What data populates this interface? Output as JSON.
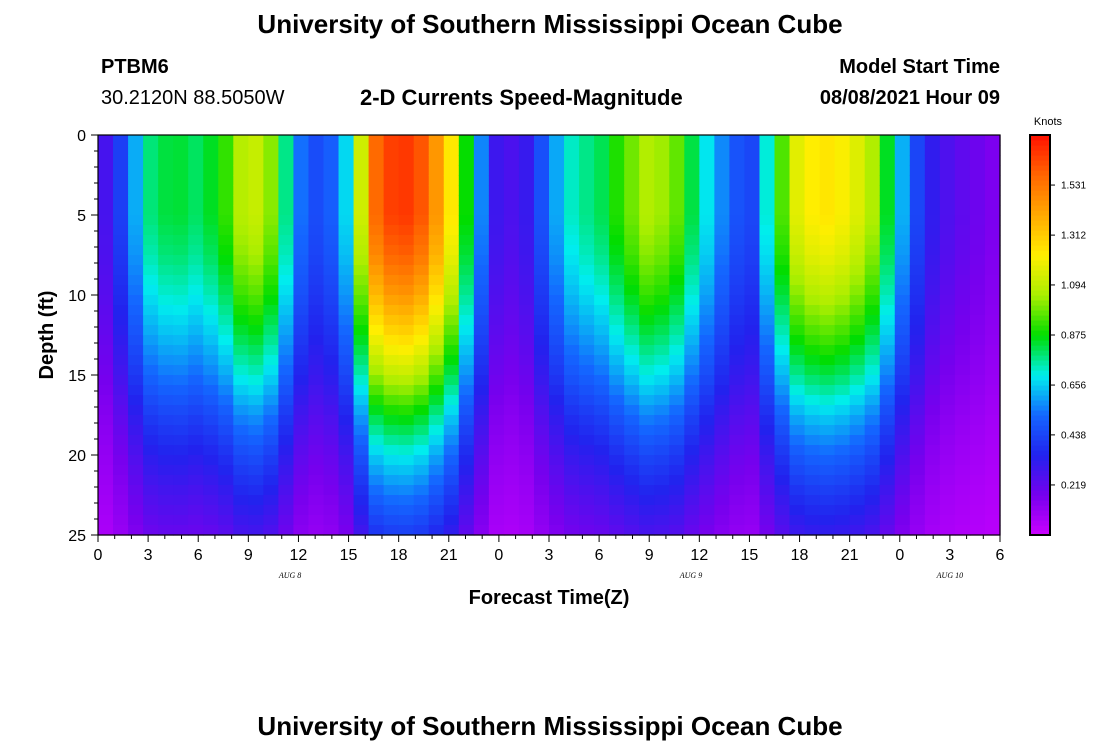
{
  "title": "University of Southern Mississippi Ocean Cube",
  "footer_title": "University of Southern Mississippi Ocean Cube",
  "station": {
    "id": "PTBM6",
    "coords": "30.2120N  88.5050W"
  },
  "subtitle": "2-D Currents Speed-Magnitude",
  "model": {
    "label": "Model Start Time",
    "value": "08/08/2021 Hour 09"
  },
  "colors": {
    "ramp": [
      "#cc00ff",
      "#7700ee",
      "#2222ee",
      "#1466ff",
      "#00eeee",
      "#00dd00",
      "#aaee00",
      "#ffee00",
      "#ffaa00",
      "#ff6600",
      "#ff1100"
    ]
  },
  "chart_data": {
    "type": "heatmap",
    "xlabel": "Forecast Time(Z)",
    "ylabel": "Depth (ft)",
    "x_range_hours": [
      0,
      54
    ],
    "ylim": [
      0,
      25
    ],
    "y_ticks": [
      0,
      5,
      10,
      15,
      20,
      25
    ],
    "x_tick_labels": [
      "0",
      "3",
      "6",
      "9",
      "12",
      "15",
      "18",
      "21",
      "0",
      "3",
      "6",
      "9",
      "12",
      "15",
      "18",
      "21",
      "0",
      "3",
      "6"
    ],
    "date_labels": [
      {
        "text": "AUG 8",
        "hour": 11.5
      },
      {
        "text": "AUG 9",
        "hour": 35.5
      },
      {
        "text": "AUG 10",
        "hour": 51
      }
    ],
    "colorbar": {
      "label": "Knots",
      "ticks": [
        "1.531",
        "1.312",
        "1.094",
        "0.875",
        "0.656",
        "0.438",
        "0.219"
      ],
      "tick_values": [
        1.531,
        1.312,
        1.094,
        0.875,
        0.656,
        0.438,
        0.219
      ],
      "range": [
        0.0,
        1.75
      ]
    },
    "time_hours": [
      0,
      1.5,
      3,
      4.5,
      6,
      7.5,
      9,
      10.5,
      12,
      13.5,
      15,
      16.5,
      18,
      19.5,
      21,
      22.5,
      24,
      25.5,
      27,
      28.5,
      30,
      31.5,
      33,
      34.5,
      36,
      37.5,
      39,
      40.5,
      42,
      43.5,
      45,
      46.5,
      48,
      49.5,
      51,
      52.5,
      54
    ],
    "surface_speed_knots": [
      0.2,
      0.45,
      0.78,
      0.85,
      0.8,
      0.9,
      1.15,
      1.0,
      0.55,
      0.42,
      0.7,
      1.55,
      1.7,
      1.6,
      1.3,
      0.7,
      0.25,
      0.28,
      0.55,
      0.75,
      0.8,
      0.95,
      1.08,
      1.0,
      0.75,
      0.55,
      0.4,
      0.85,
      1.2,
      1.25,
      1.2,
      1.05,
      0.65,
      0.35,
      0.25,
      0.2,
      0.15
    ],
    "profile_depth_ft": [
      0,
      2.5,
      5,
      7.5,
      10,
      12.5,
      15,
      17.5,
      20,
      22.5,
      25
    ],
    "profile_factor": [
      1.0,
      1.0,
      1.0,
      0.95,
      0.87,
      0.77,
      0.66,
      0.53,
      0.42,
      0.33,
      0.25
    ]
  }
}
